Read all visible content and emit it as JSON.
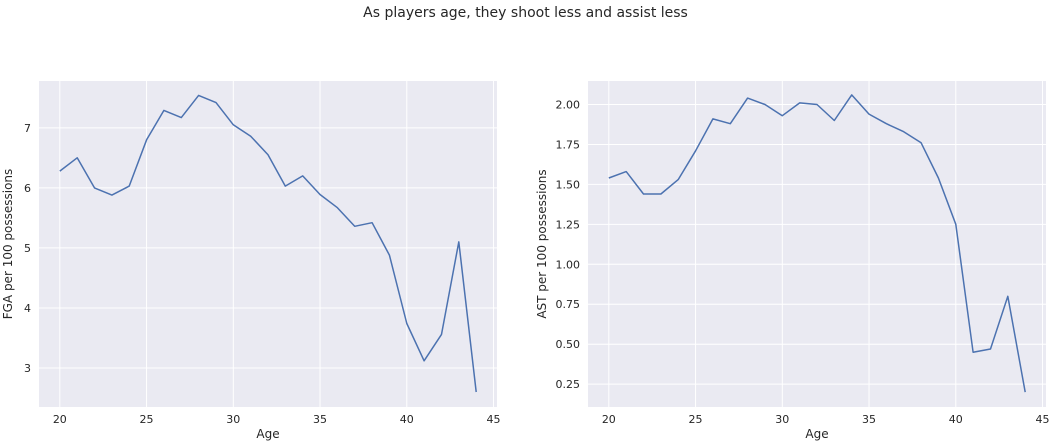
{
  "title": "As players age, they shoot less and assist less",
  "chart_data": [
    {
      "type": "line",
      "xlabel": "Age",
      "ylabel": "FGA per 100 possessions",
      "xlim": [
        18.8,
        45.2
      ],
      "ylim": [
        2.35,
        7.78
      ],
      "xticks": [
        20,
        25,
        30,
        35,
        40,
        45
      ],
      "xtick_labels": [
        "20",
        "25",
        "30",
        "35",
        "40",
        "45"
      ],
      "yticks": [
        3,
        4,
        5,
        6,
        7
      ],
      "ytick_labels": [
        "3",
        "4",
        "5",
        "6",
        "7"
      ],
      "grid": true,
      "color": "#4c72b0",
      "x": [
        20,
        21,
        22,
        23,
        24,
        25,
        26,
        27,
        28,
        29,
        30,
        31,
        32,
        33,
        34,
        35,
        36,
        37,
        38,
        39,
        40,
        41,
        42,
        43,
        44
      ],
      "y": [
        6.28,
        6.5,
        6.0,
        5.88,
        6.03,
        6.8,
        7.29,
        7.17,
        7.54,
        7.42,
        7.05,
        6.86,
        6.55,
        6.03,
        6.2,
        5.89,
        5.67,
        5.36,
        5.42,
        4.88,
        3.74,
        3.12,
        3.56,
        5.1,
        2.6
      ]
    },
    {
      "type": "line",
      "xlabel": "Age",
      "ylabel": "AST per 100 possessions",
      "xlim": [
        18.8,
        45.2
      ],
      "ylim": [
        0.107,
        2.147
      ],
      "xticks": [
        20,
        25,
        30,
        35,
        40,
        45
      ],
      "xtick_labels": [
        "20",
        "25",
        "30",
        "35",
        "40",
        "45"
      ],
      "yticks": [
        0.25,
        0.5,
        0.75,
        1.0,
        1.25,
        1.5,
        1.75,
        2.0
      ],
      "ytick_labels": [
        "0.25",
        "0.50",
        "0.75",
        "1.00",
        "1.25",
        "1.50",
        "1.75",
        "2.00"
      ],
      "grid": true,
      "color": "#4c72b0",
      "x": [
        20,
        21,
        22,
        23,
        24,
        25,
        26,
        27,
        28,
        29,
        30,
        31,
        32,
        33,
        34,
        35,
        36,
        37,
        38,
        39,
        40,
        41,
        42,
        43,
        44
      ],
      "y": [
        1.54,
        1.58,
        1.44,
        1.44,
        1.53,
        1.71,
        1.91,
        1.88,
        2.04,
        2.0,
        1.93,
        2.01,
        2.0,
        1.9,
        2.06,
        1.94,
        1.88,
        1.83,
        1.76,
        1.54,
        1.25,
        0.45,
        0.47,
        0.8,
        0.2
      ]
    }
  ]
}
